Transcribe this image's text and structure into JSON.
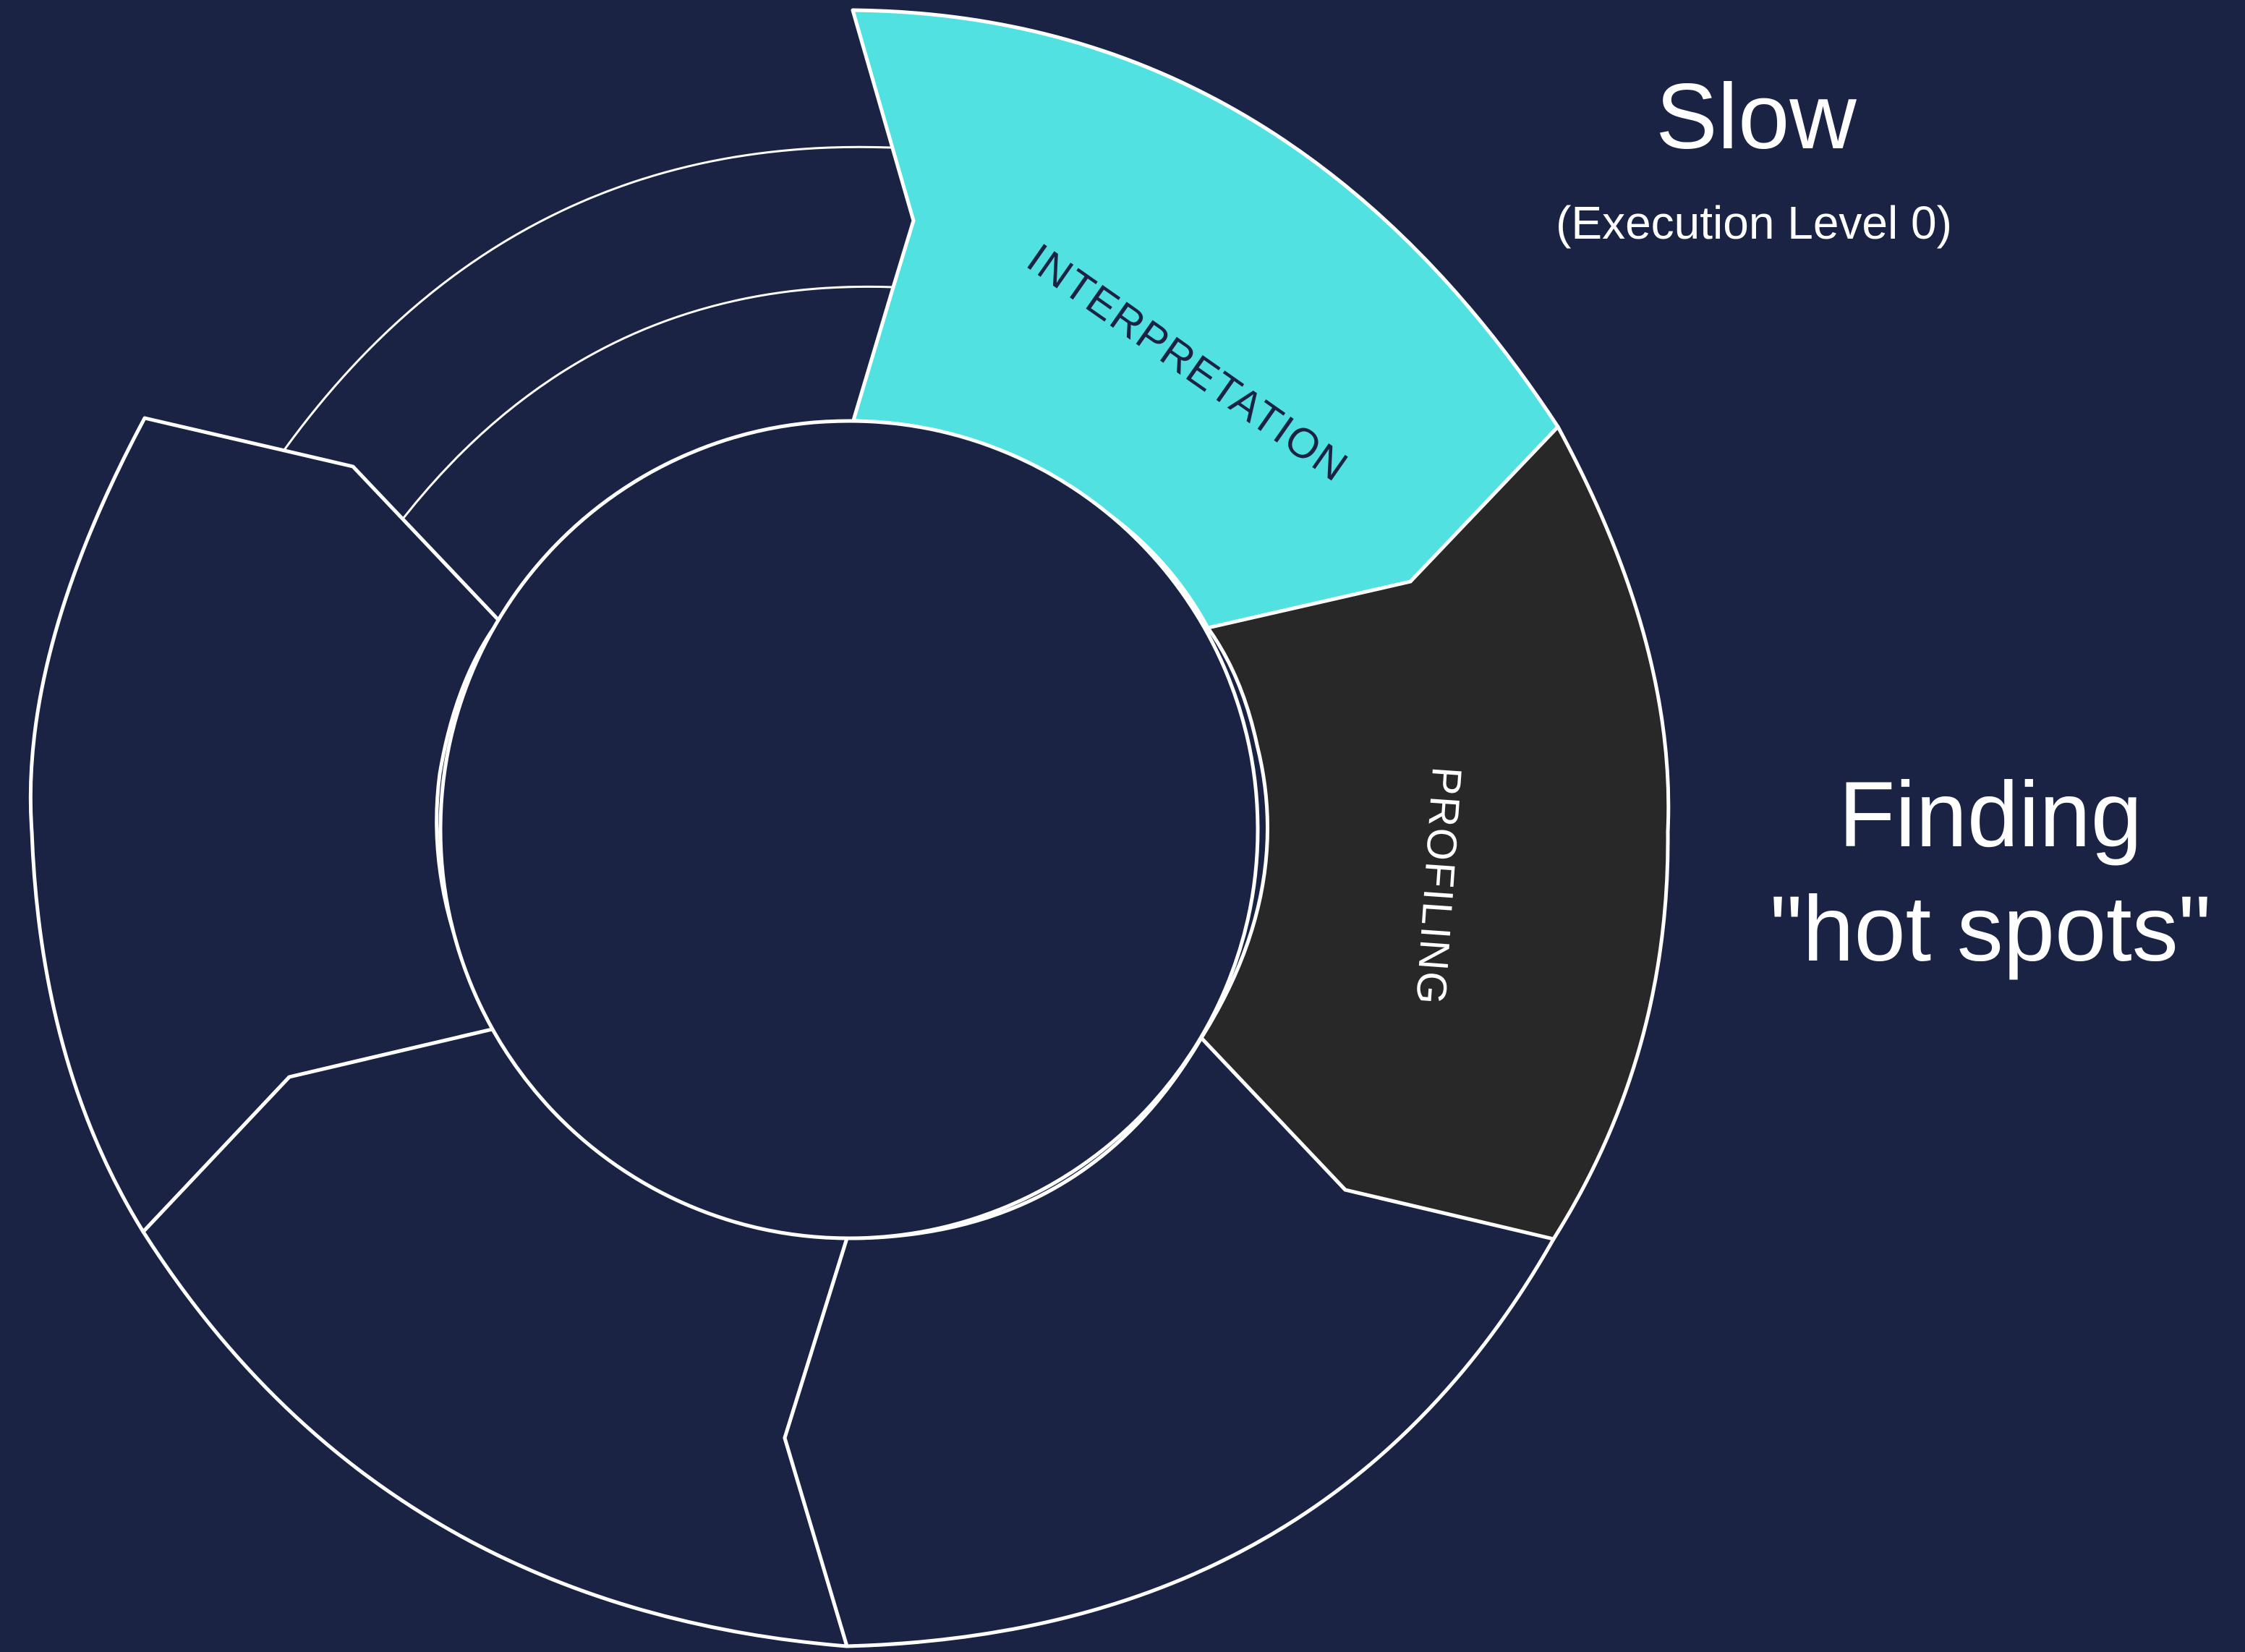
{
  "colors": {
    "background": "#1a2343",
    "outline": "#ffffff",
    "interpretation_fill": "#51e1e1",
    "profiling_fill": "#282828",
    "label_dark": "#1a2343",
    "label_light": "#ffffff"
  },
  "segments": [
    {
      "id": "interpretation",
      "label": "INTERPRETATION",
      "state": "active"
    },
    {
      "id": "profiling",
      "label": "PROFILING",
      "state": "active"
    },
    {
      "id": "segment-lower-right",
      "label": "",
      "state": "inactive"
    },
    {
      "id": "segment-lower-left",
      "label": "",
      "state": "inactive"
    },
    {
      "id": "segment-left",
      "label": "",
      "state": "inactive"
    }
  ],
  "annotations": {
    "slow": {
      "title": "Slow",
      "subtitle": "(Execution Level 0)"
    },
    "hot_spots": {
      "line1": "Finding",
      "line2": "\"hot spots\""
    }
  }
}
